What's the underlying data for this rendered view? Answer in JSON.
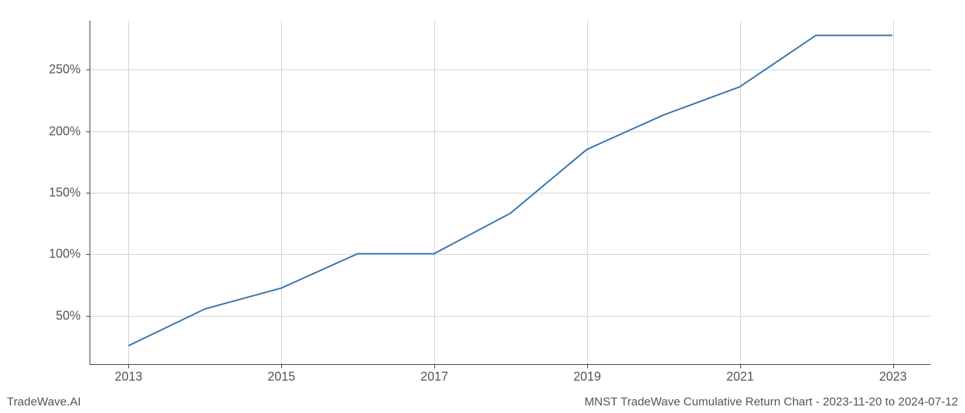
{
  "chart": {
    "type": "line",
    "x_values": [
      2013,
      2014,
      2015,
      2016,
      2017,
      2018,
      2019,
      2020,
      2021,
      2022,
      2023
    ],
    "y_values": [
      25,
      55,
      72,
      100,
      100,
      133,
      185,
      213,
      236,
      278,
      278
    ],
    "line_color": "#3a76af",
    "line_width": 2.2,
    "xlim": [
      2012.5,
      2023.5
    ],
    "ylim": [
      10,
      290
    ],
    "x_ticks": [
      2013,
      2015,
      2017,
      2019,
      2021,
      2023
    ],
    "x_tick_labels": [
      "2013",
      "2015",
      "2017",
      "2019",
      "2021",
      "2023"
    ],
    "y_ticks": [
      50,
      100,
      150,
      200,
      250
    ],
    "y_tick_labels": [
      "50%",
      "100%",
      "150%",
      "200%",
      "250%"
    ],
    "grid_color": "#d0d0d0",
    "axis_color": "#333333",
    "tick_label_color": "#555555",
    "tick_label_fontsize": 18,
    "background_color": "#ffffff"
  },
  "footer": {
    "left": "TradeWave.AI",
    "right": "MNST TradeWave Cumulative Return Chart - 2023-11-20 to 2024-07-12",
    "fontsize": 17,
    "color": "#555555"
  }
}
